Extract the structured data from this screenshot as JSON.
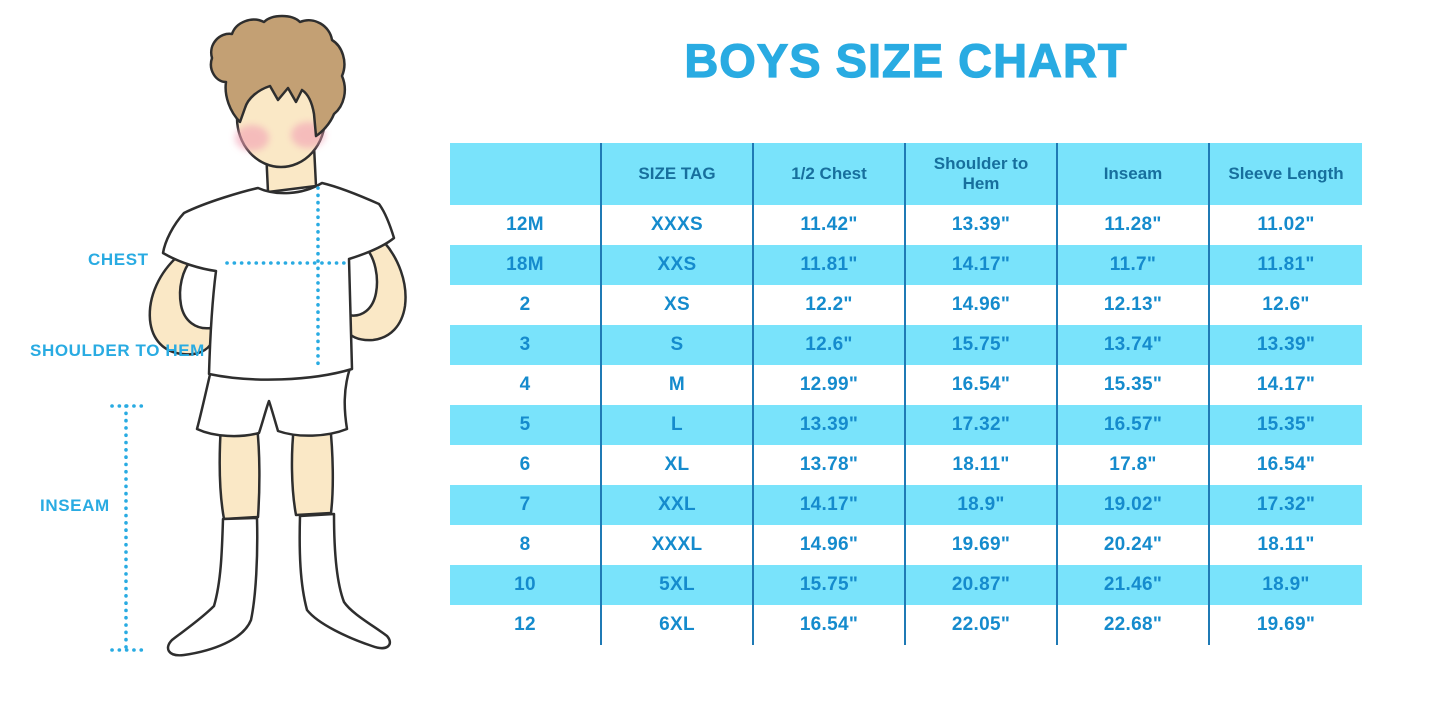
{
  "title": "BOYS SIZE CHART",
  "figure_labels": {
    "chest": "CHEST",
    "shoulder_to_hem": "SHOULDER TO HEM",
    "inseam": "INSEAM"
  },
  "chart_data": {
    "type": "table",
    "title": "BOYS SIZE CHART",
    "columns": [
      "",
      "SIZE TAG",
      "1/2 Chest",
      "Shoulder to Hem",
      "Inseam",
      "Sleeve Length"
    ],
    "rows": [
      [
        "12M",
        "XXXS",
        "11.42\"",
        "13.39\"",
        "11.28\"",
        "11.02\""
      ],
      [
        "18M",
        "XXS",
        "11.81\"",
        "14.17\"",
        "11.7\"",
        "11.81\""
      ],
      [
        "2",
        "XS",
        "12.2\"",
        "14.96\"",
        "12.13\"",
        "12.6\""
      ],
      [
        "3",
        "S",
        "12.6\"",
        "15.75\"",
        "13.74\"",
        "13.39\""
      ],
      [
        "4",
        "M",
        "12.99\"",
        "16.54\"",
        "15.35\"",
        "14.17\""
      ],
      [
        "5",
        "L",
        "13.39\"",
        "17.32\"",
        "16.57\"",
        "15.35\""
      ],
      [
        "6",
        "XL",
        "13.78\"",
        "18.11\"",
        "17.8\"",
        "16.54\""
      ],
      [
        "7",
        "XXL",
        "14.17\"",
        "18.9\"",
        "19.02\"",
        "17.32\""
      ],
      [
        "8",
        "XXXL",
        "14.96\"",
        "19.69\"",
        "20.24\"",
        "18.11\""
      ],
      [
        "10",
        "5XL",
        "15.75\"",
        "20.87\"",
        "21.46\"",
        "18.9\""
      ],
      [
        "12",
        "6XL",
        "16.54\"",
        "22.05\"",
        "22.68\"",
        "19.69\""
      ]
    ]
  },
  "colors": {
    "accent_blue": "#29ABE2",
    "stripe_cyan": "#79E3FB",
    "divider_blue": "#1F7AB5",
    "header_text": "#176F9D",
    "cell_text": "#158BCD",
    "skin": "#FAE8C6",
    "hair": "#C3A074",
    "cheek_pink": "#F2A0B5",
    "outline": "#2E2E2E",
    "background": "#FFFFFF"
  }
}
